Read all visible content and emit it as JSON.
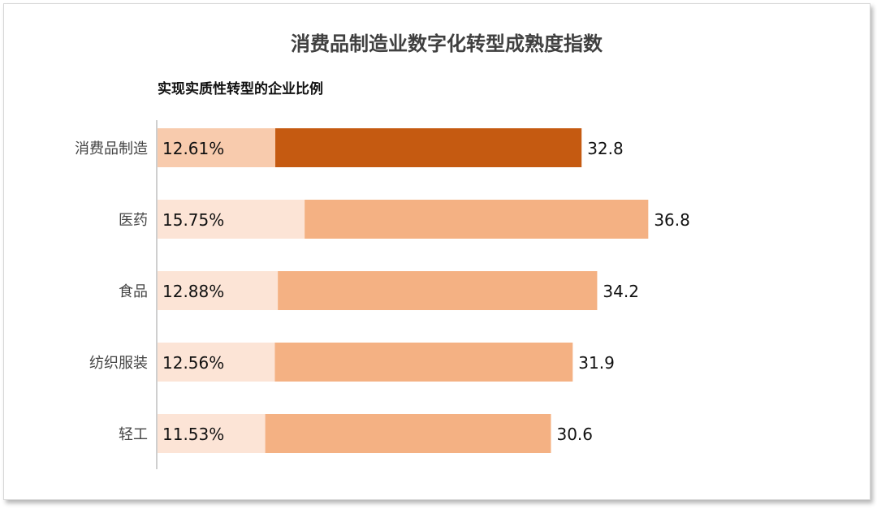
{
  "chart_data": {
    "type": "bar",
    "orientation": "horizontal",
    "title": "消费品制造业数字化转型成熟度指数",
    "subtitle": "实现实质性转型的企业比例",
    "categories": [
      "消费品制造",
      "医药",
      "食品",
      "纺织服装",
      "轻工"
    ],
    "series": [
      {
        "values": [
          12.61,
          15.75,
          12.88,
          12.56,
          11.53
        ],
        "labels": [
          "12.61%",
          "15.75%",
          "12.88%",
          "12.56%",
          "11.53%"
        ]
      },
      {
        "values": [
          32.8,
          36.8,
          34.2,
          31.9,
          30.6
        ],
        "labels": [
          "32.8",
          "36.8",
          "34.2",
          "31.9",
          "30.6"
        ]
      }
    ],
    "stacked": true,
    "highlight_category": "消费品制造",
    "colors": {
      "pct_highlight": "#F8CBAD",
      "pct_normal": "#FCE4D6",
      "value_highlight": "#C55A11",
      "value_normal": "#F4B183",
      "axis": "#BFBFBF"
    },
    "grid": false,
    "legend": "none"
  }
}
